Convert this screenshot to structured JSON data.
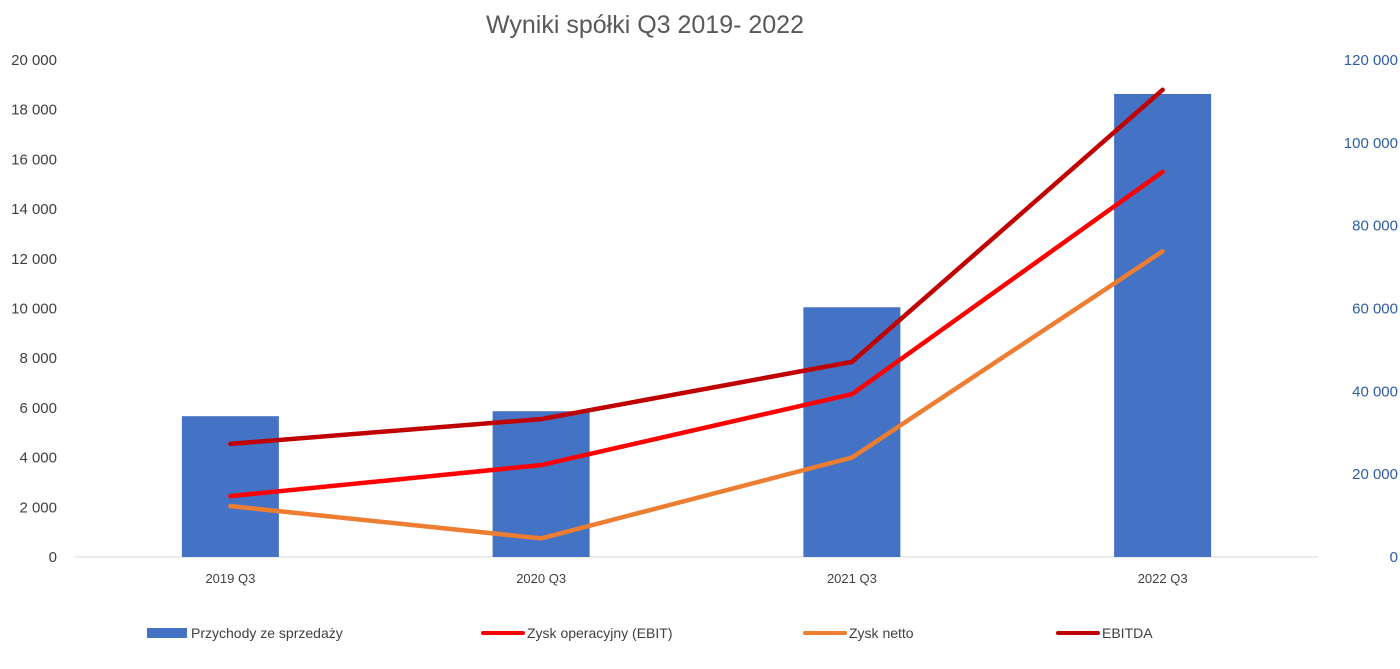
{
  "chart_data": {
    "type": "bar",
    "title": "Wyniki spółki Q3 2019- 2022",
    "categories": [
      "2019 Q3",
      "2020 Q3",
      "2021 Q3",
      "2022 Q3"
    ],
    "y_left": {
      "min": 0,
      "max": 20000,
      "step": 2000,
      "tick_labels": [
        "0",
        "2 000",
        "4 000",
        "6 000",
        "8 000",
        "10 000",
        "12 000",
        "14 000",
        "16 000",
        "18 000",
        "20 000"
      ]
    },
    "y_right": {
      "min": 0,
      "max": 120000,
      "step": 20000,
      "tick_labels": [
        "0",
        "20 000",
        "40 000",
        "60 000",
        "80 000",
        "100 000",
        "120 000"
      ]
    },
    "grid": false,
    "legend_position": "bottom",
    "series": [
      {
        "name": "Przychody ze sprzedaży",
        "type": "bar",
        "axis": "right",
        "color": "#4472c4",
        "values": [
          34000,
          35200,
          60300,
          111800
        ]
      },
      {
        "name": "Zysk operacyjny (EBIT)",
        "type": "line",
        "axis": "left",
        "color": "#ff0000",
        "values": [
          2450,
          3700,
          6550,
          15500
        ]
      },
      {
        "name": "Zysk netto",
        "type": "line",
        "axis": "left",
        "color": "#ed7d31",
        "values": [
          2050,
          750,
          4000,
          12300
        ]
      },
      {
        "name": "EBITDA",
        "type": "line",
        "axis": "left",
        "color": "#c00000",
        "values": [
          4550,
          5550,
          7850,
          18800
        ]
      }
    ]
  }
}
